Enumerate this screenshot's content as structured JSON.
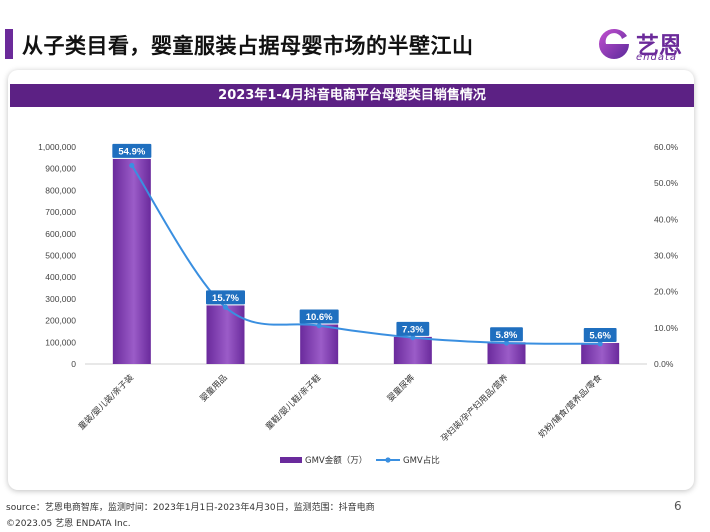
{
  "header": {
    "title": "从子类目看，婴童服装占据母婴市场的半壁江山"
  },
  "logo": {
    "cn": "艺恩",
    "en": "endata",
    "mark": "e-logo-icon"
  },
  "chart_data": {
    "type": "bar",
    "title": "2023年1-4月抖音电商平台母婴类目销售情况",
    "categories": [
      "童装/婴儿装/亲子装",
      "婴童用品",
      "童鞋/婴儿鞋/亲子鞋",
      "婴童尿裤",
      "孕妇装/孕产妇用品/营养",
      "奶粉/辅食/营养品/零食"
    ],
    "series": [
      {
        "name": "GMV金额（万）",
        "type": "bar",
        "axis": "left",
        "values": [
          945000,
          270000,
          182000,
          125000,
          100000,
          97000
        ]
      },
      {
        "name": "GMV占比",
        "type": "line",
        "axis": "right",
        "values": [
          54.9,
          15.7,
          10.6,
          7.3,
          5.8,
          5.6
        ]
      }
    ],
    "data_labels": [
      "54.9%",
      "15.7%",
      "10.6%",
      "7.3%",
      "5.8%",
      "5.6%"
    ],
    "y_left": {
      "range": [
        0,
        1000000
      ],
      "ticks": [
        "0",
        "100,000",
        "200,000",
        "300,000",
        "400,000",
        "500,000",
        "600,000",
        "700,000",
        "800,000",
        "900,000",
        "1,000,000"
      ]
    },
    "y_right": {
      "range": [
        0,
        60
      ],
      "ticks": [
        "0.0%",
        "10.0%",
        "20.0%",
        "30.0%",
        "40.0%",
        "50.0%",
        "60.0%"
      ]
    },
    "legend_position": "bottom",
    "grid": false,
    "colors": {
      "bar": "#6a2a9c",
      "bar_light": "#9b5cc8",
      "line": "#3a8fe0",
      "label_bg": "#1f6fbf",
      "header": "#5c2184"
    }
  },
  "footer": {
    "source": "source：艺恩电商智库，监测时间：2023年1月1日-2023年4月30日，监测范围：抖音电商",
    "copyright": "©2023.05 艺恩 ENDATA Inc.",
    "page": "6"
  }
}
